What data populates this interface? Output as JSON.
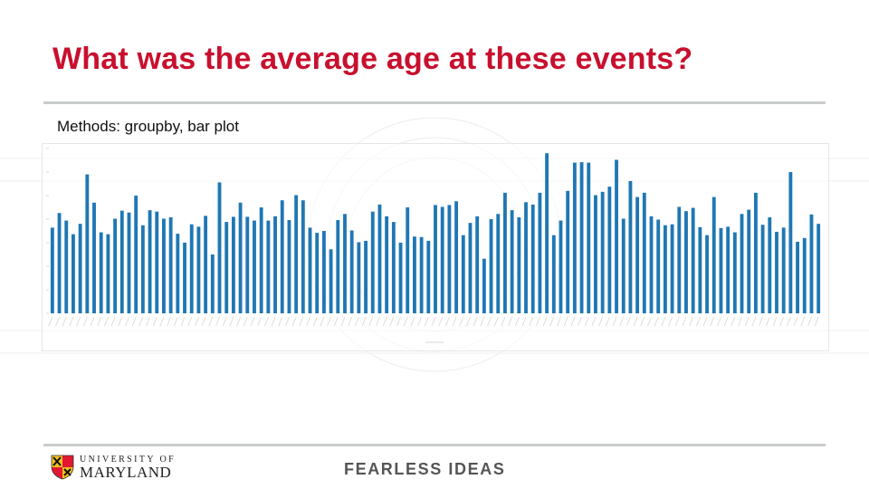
{
  "slide": {
    "title": "What was the average age at these events?",
    "subtitle": "Methods: groupby, bar plot",
    "tagline": "FEARLESS IDEAS",
    "logo": {
      "line1": "UNIVERSITY OF",
      "line2": "MARYLAND"
    }
  },
  "colors": {
    "title": "#c8102e",
    "bar": "#1f77b4",
    "rule": "#c9cdcc",
    "tagline": "#555555"
  },
  "chart_data": {
    "type": "bar",
    "title": "",
    "xlabel": "",
    "ylabel": "",
    "ylim": [
      0,
      35
    ],
    "grid": false,
    "legend": "none",
    "values": [
      18.2,
      21.3,
      19.7,
      16.8,
      19.0,
      29.5,
      23.5,
      17.2,
      16.8,
      20.1,
      21.8,
      21.4,
      25.0,
      18.7,
      21.9,
      21.6,
      20.1,
      20.4,
      16.9,
      15.0,
      18.9,
      18.4,
      20.7,
      12.5,
      27.8,
      19.4,
      20.5,
      23.5,
      20.5,
      19.7,
      22.5,
      19.7,
      20.6,
      24.0,
      19.8,
      25.1,
      24.0,
      18.2,
      17.1,
      17.5,
      13.6,
      19.8,
      21.1,
      17.6,
      15.1,
      15.4,
      21.6,
      23.1,
      20.6,
      19.4,
      15.0,
      22.5,
      16.3,
      16.2,
      15.4,
      23.0,
      22.6,
      23.0,
      23.8,
      16.6,
      19.2,
      20.6,
      11.6,
      20.0,
      21.1,
      25.6,
      21.9,
      20.4,
      23.6,
      23.1,
      25.6,
      34.0,
      16.6,
      19.7,
      26.0,
      32.0,
      32.1,
      32.0,
      25.1,
      25.8,
      26.9,
      32.6,
      20.1,
      28.1,
      24.7,
      25.6,
      20.6,
      19.9,
      18.7,
      18.9,
      22.6,
      21.7,
      22.4,
      18.3,
      16.6,
      24.7,
      18.1,
      18.4,
      17.2,
      21.1,
      22.0,
      25.6,
      18.8,
      20.4,
      17.3,
      18.2,
      30.0,
      15.2,
      16.0,
      21.0,
      19.0
    ]
  }
}
